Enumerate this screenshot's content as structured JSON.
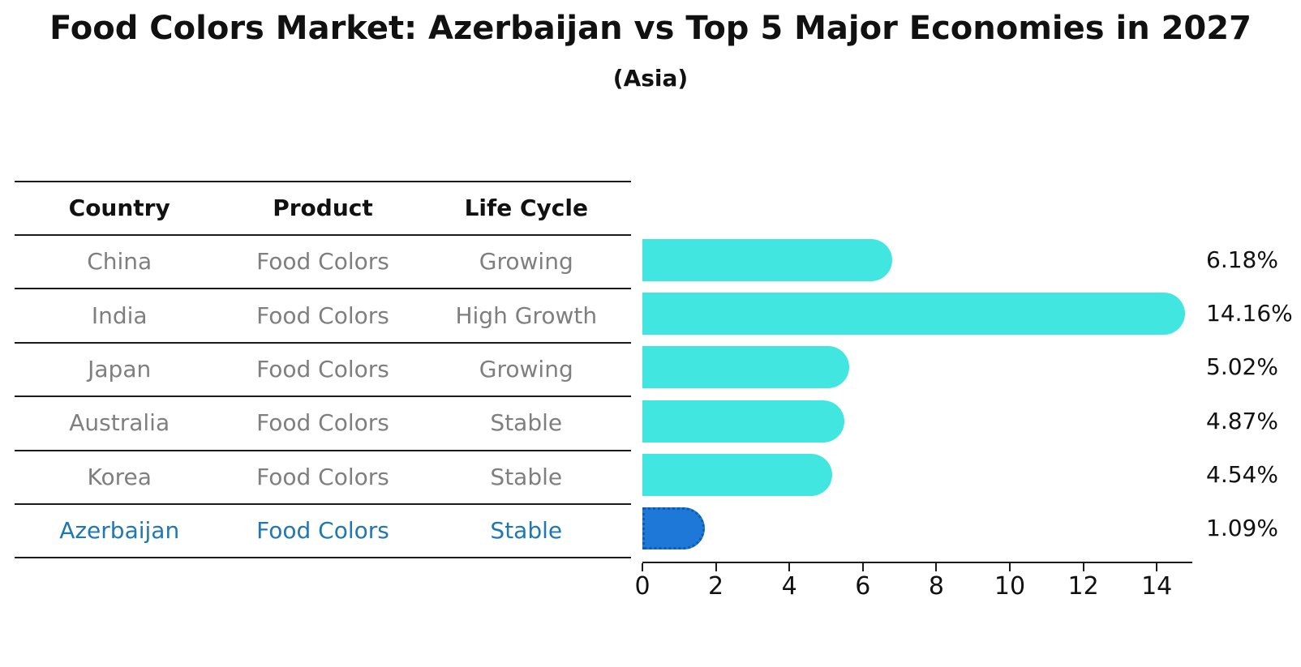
{
  "header": {
    "title": "Food Colors Market: Azerbaijan vs Top 5 Major Economies in 2027",
    "subtitle": "(Asia)"
  },
  "table": {
    "columns": [
      "Country",
      "Product",
      "Life Cycle"
    ],
    "rows": [
      {
        "country": "China",
        "product": "Food Colors",
        "life_cycle": "Growing",
        "highlight": false
      },
      {
        "country": "India",
        "product": "Food Colors",
        "life_cycle": "High Growth",
        "highlight": false
      },
      {
        "country": "Japan",
        "product": "Food Colors",
        "life_cycle": "Growing",
        "highlight": false
      },
      {
        "country": "Australia",
        "product": "Food Colors",
        "life_cycle": "Stable",
        "highlight": false
      },
      {
        "country": "Korea",
        "product": "Food Colors",
        "life_cycle": "Stable",
        "highlight": false
      },
      {
        "country": "Azerbaijan",
        "product": "Food Colors",
        "life_cycle": "Stable",
        "highlight": true
      }
    ]
  },
  "chart_data": {
    "type": "bar",
    "orientation": "horizontal",
    "title": "Food Colors Market: Azerbaijan vs Top 5 Major Economies in 2027",
    "subtitle": "(Asia)",
    "categories": [
      "China",
      "India",
      "Japan",
      "Australia",
      "Korea",
      "Azerbaijan"
    ],
    "values": [
      6.18,
      14.16,
      5.02,
      4.87,
      4.54,
      1.09
    ],
    "value_labels": [
      "6.18%",
      "14.16%",
      "5.02%",
      "4.87%",
      "4.54%",
      "1.09%"
    ],
    "x_ticks": [
      0,
      2,
      4,
      6,
      8,
      10,
      12,
      14
    ],
    "xlim": [
      0,
      15
    ],
    "grid": false,
    "legend": false,
    "bar_color": "#42e6e0",
    "highlight_bar_color": "#1e78d8",
    "highlight_index": 5,
    "highlight_text_color": "#1f77b4",
    "row_text_color": "#7f7f7f"
  }
}
